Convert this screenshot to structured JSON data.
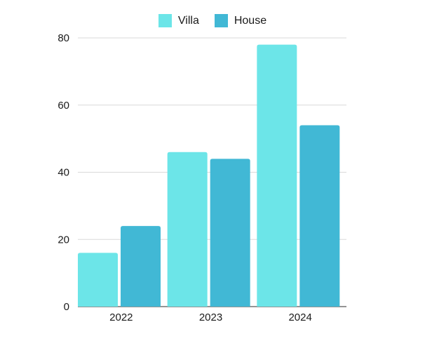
{
  "chart_data": {
    "type": "bar",
    "categories": [
      "2022",
      "2023",
      "2024"
    ],
    "series": [
      {
        "name": "Villa",
        "values": [
          16,
          46,
          78
        ],
        "color": "#6ce5e8"
      },
      {
        "name": "House",
        "values": [
          24,
          44,
          54
        ],
        "color": "#41b8d5"
      }
    ],
    "yticks": [
      "0",
      "20",
      "40",
      "60",
      "80"
    ],
    "ylim": [
      0,
      80
    ],
    "grid": true,
    "legend_position": "top-center",
    "title": "",
    "xlabel": "",
    "ylabel": ""
  }
}
